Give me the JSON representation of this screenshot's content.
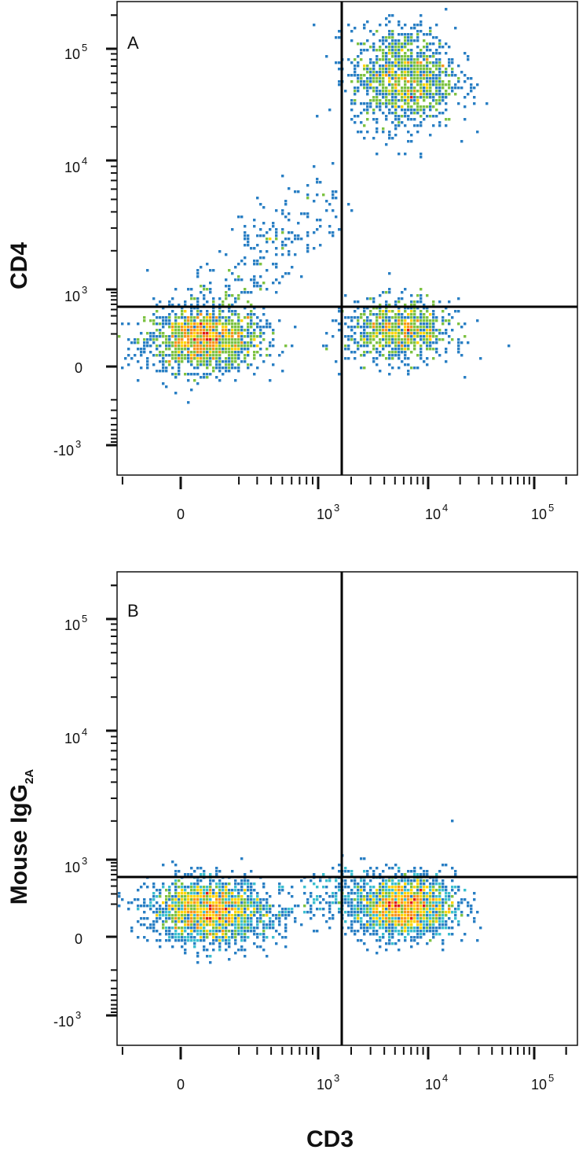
{
  "chart_data": [
    {
      "type": "scatter",
      "subtype": "flow-cytometry-density-dot-plot",
      "panel_label": "A",
      "xlabel": "CD3",
      "ylabel": "CD4",
      "x_scale": "biexponential (logicle)",
      "y_scale": "biexponential (logicle)",
      "x_tick_labels": [
        "0",
        "10^3",
        "10^4",
        "10^5"
      ],
      "y_tick_labels": [
        "-10^3",
        "0",
        "10^3",
        "10^4",
        "10^5"
      ],
      "xlim": [
        -300,
        250000
      ],
      "ylim": [
        -1500,
        250000
      ],
      "quadrant_gate": {
        "x": 1500,
        "y": 700
      },
      "populations": [
        {
          "cx": 70,
          "cy": 150,
          "n": 1500,
          "peak_color": "#ffd400"
        },
        {
          "cx": 6000,
          "cy": 55000,
          "n": 1200,
          "peak_color": "#e11a1a"
        },
        {
          "cx": 5500,
          "cy": 220,
          "n": 900,
          "peak_color": "#7dc242"
        },
        {
          "cx": 350,
          "cy": 1800,
          "n": 260,
          "peak_color": "#2c55a8"
        }
      ],
      "grid": false,
      "legend": "none"
    },
    {
      "type": "scatter",
      "subtype": "flow-cytometry-density-dot-plot",
      "panel_label": "B",
      "xlabel": "CD3",
      "ylabel": "Mouse IgG",
      "ylabel_subscript": "2A",
      "x_scale": "biexponential (logicle)",
      "y_scale": "biexponential (logicle)",
      "x_tick_labels": [
        "0",
        "10^3",
        "10^4",
        "10^5"
      ],
      "y_tick_labels": [
        "-10^3",
        "0",
        "10^3",
        "10^4",
        "10^5"
      ],
      "xlim": [
        -300,
        250000
      ],
      "ylim": [
        -1500,
        250000
      ],
      "quadrant_gate": {
        "x": 1500,
        "y": 700
      },
      "populations": [
        {
          "cx": 80,
          "cy": 150,
          "n": 1700,
          "peak_color": "#ffd400"
        },
        {
          "cx": 6000,
          "cy": 180,
          "n": 1700,
          "peak_color": "#e11a1a"
        },
        {
          "cx": 600,
          "cy": 150,
          "n": 250,
          "peak_color": "#2c55a8"
        }
      ],
      "grid": false,
      "legend": "none"
    }
  ],
  "labels": {
    "panel_a": "A",
    "panel_b": "B",
    "ylabel_a": "CD4",
    "ylabel_b_main": "Mouse IgG",
    "ylabel_b_sub": "2A",
    "xlabel": "CD3",
    "tick_zero": "0",
    "tick_ten": "10",
    "tick_neg_ten": "-10",
    "exp_3": "3",
    "exp_4": "4",
    "exp_5": "5"
  },
  "colors": {
    "density_scale": [
      "#1f3b9b",
      "#2a7fc4",
      "#3bbfcf",
      "#7dc242",
      "#ffd400",
      "#f7941d",
      "#e11a1a"
    ],
    "gate_line": "#000000"
  }
}
